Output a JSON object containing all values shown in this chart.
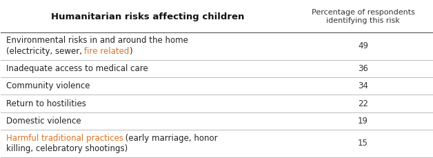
{
  "title_col1": "Humanitarian risks affecting children",
  "title_col2": "Percentage of respondents\nidentifying this risk",
  "rows": [
    {
      "label_parts": [
        {
          "text": "Environmental risks in and around the home\n(electricity, sewer, ",
          "color": "#222222"
        },
        {
          "text": "fire related",
          "color": "#e07020"
        },
        {
          "text": ")",
          "color": "#222222"
        }
      ],
      "value": "49",
      "multiline": true
    },
    {
      "label_parts": [
        {
          "text": "Inadequate access to medical care",
          "color": "#222222"
        }
      ],
      "value": "36",
      "multiline": false
    },
    {
      "label_parts": [
        {
          "text": "Community violence",
          "color": "#222222"
        }
      ],
      "value": "34",
      "multiline": false
    },
    {
      "label_parts": [
        {
          "text": "Return to hostilities",
          "color": "#222222"
        }
      ],
      "value": "22",
      "multiline": false
    },
    {
      "label_parts": [
        {
          "text": "Domestic violence",
          "color": "#222222"
        }
      ],
      "value": "19",
      "multiline": false
    },
    {
      "label_parts": [
        {
          "text": "Harmful traditional practices",
          "color": "#e07020"
        },
        {
          "text": " (early marriage, honor\nkilling, celebratory shootings)",
          "color": "#222222"
        }
      ],
      "value": "15",
      "multiline": true
    }
  ],
  "bg_color": "#ffffff",
  "line_color": "#bbbbbb",
  "header_line_color": "#555555",
  "title_fontsize": 9.5,
  "body_fontsize": 8.5,
  "col_split": 0.68,
  "fig_width": 6.28,
  "fig_height": 2.29
}
